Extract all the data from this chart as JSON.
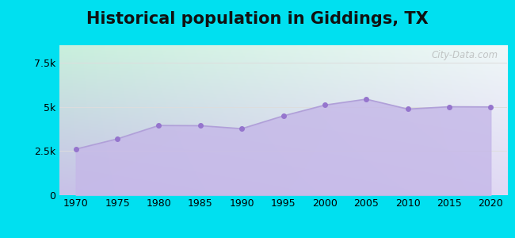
{
  "title": "Historical population in Giddings, TX",
  "years": [
    1970,
    1975,
    1980,
    1985,
    1990,
    1995,
    2000,
    2005,
    2010,
    2015,
    2020
  ],
  "population": [
    2611,
    3190,
    3950,
    3938,
    3769,
    4493,
    5105,
    5443,
    4881,
    5012,
    5001
  ],
  "xlim": [
    1968,
    2022
  ],
  "ylim": [
    0,
    8500
  ],
  "yticks": [
    0,
    2500,
    5000,
    7500
  ],
  "ytick_labels": [
    "0",
    "2.5k",
    "5k",
    "7.5k"
  ],
  "xticks": [
    1970,
    1975,
    1980,
    1985,
    1990,
    1995,
    2000,
    2005,
    2010,
    2015,
    2020
  ],
  "fill_color": "#c5b8e8",
  "dot_color": "#9575cd",
  "background_outer": "#00e0f0",
  "plot_bg_tl": "#c8f0dc",
  "plot_bg_tr": "#e8f5f0",
  "plot_bg_bl": "#c8c0e8",
  "plot_bg_br": "#d8ccee",
  "title_fontsize": 15,
  "watermark_text": "City-Data.com",
  "grid_color": "#dddddd",
  "tick_fontsize": 9
}
